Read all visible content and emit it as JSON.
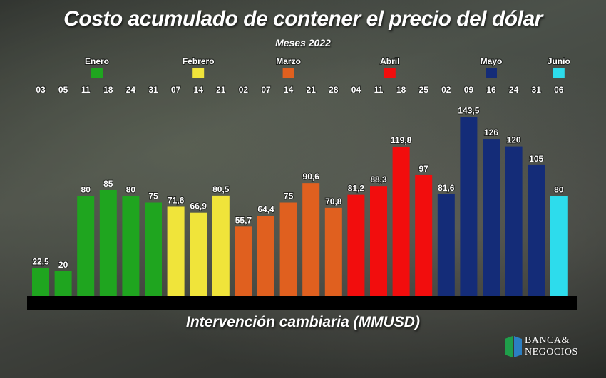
{
  "title": "Costo acumulado de contener el precio del dólar",
  "subtitle": "Meses 2022",
  "logo": {
    "line1": "BANCA&",
    "line2": "NEGOCIOS"
  },
  "chart_data": {
    "type": "bar",
    "title": "Costo acumulado de contener el precio del dólar",
    "subtitle": "Meses 2022",
    "xlabel": "Intervención cambiaria (MMUSD)",
    "ylabel": "",
    "ylim": [
      0,
      150
    ],
    "grid": false,
    "legend": "top",
    "months": [
      {
        "name": "Enero",
        "color": "#1fa51f"
      },
      {
        "name": "Febrero",
        "color": "#f0e43a"
      },
      {
        "name": "Marzo",
        "color": "#e0601f"
      },
      {
        "name": "Abril",
        "color": "#f20d0d"
      },
      {
        "name": "Mayo",
        "color": "#142c78"
      },
      {
        "name": "Junio",
        "color": "#2ddcec"
      }
    ],
    "bars": [
      {
        "month": "Enero",
        "day": "03",
        "value": 22.5,
        "label": "22,5"
      },
      {
        "month": "Enero",
        "day": "05",
        "value": 20,
        "label": "20"
      },
      {
        "month": "Enero",
        "day": "11",
        "value": 80,
        "label": "80"
      },
      {
        "month": "Enero",
        "day": "18",
        "value": 85,
        "label": "85"
      },
      {
        "month": "Enero",
        "day": "24",
        "value": 80,
        "label": "80"
      },
      {
        "month": "Enero",
        "day": "31",
        "value": 75,
        "label": "75"
      },
      {
        "month": "Febrero",
        "day": "07",
        "value": 71.6,
        "label": "71,6"
      },
      {
        "month": "Febrero",
        "day": "14",
        "value": 66.9,
        "label": "66,9"
      },
      {
        "month": "Febrero",
        "day": "21",
        "value": 80.5,
        "label": "80,5"
      },
      {
        "month": "Marzo",
        "day": "02",
        "value": 55.7,
        "label": "55,7"
      },
      {
        "month": "Marzo",
        "day": "07",
        "value": 64.4,
        "label": "64,4"
      },
      {
        "month": "Marzo",
        "day": "14",
        "value": 75,
        "label": "75"
      },
      {
        "month": "Marzo",
        "day": "21",
        "value": 90.6,
        "label": "90,6"
      },
      {
        "month": "Marzo",
        "day": "28",
        "value": 70.8,
        "label": "70,8"
      },
      {
        "month": "Abril",
        "day": "04",
        "value": 81.2,
        "label": "81,2"
      },
      {
        "month": "Abril",
        "day": "11",
        "value": 88.3,
        "label": "88,3"
      },
      {
        "month": "Abril",
        "day": "18",
        "value": 119.8,
        "label": "119,8"
      },
      {
        "month": "Abril",
        "day": "25",
        "value": 97,
        "label": "97"
      },
      {
        "month": "Mayo",
        "day": "02",
        "value": 81.6,
        "label": "81,6"
      },
      {
        "month": "Mayo",
        "day": "09",
        "value": 143.5,
        "label": "143,5"
      },
      {
        "month": "Mayo",
        "day": "16",
        "value": 126,
        "label": "126"
      },
      {
        "month": "Mayo",
        "day": "24",
        "value": 120,
        "label": "120"
      },
      {
        "month": "Mayo",
        "day": "31",
        "value": 105,
        "label": "105"
      },
      {
        "month": "Junio",
        "day": "06",
        "value": 80,
        "label": "80"
      }
    ]
  }
}
